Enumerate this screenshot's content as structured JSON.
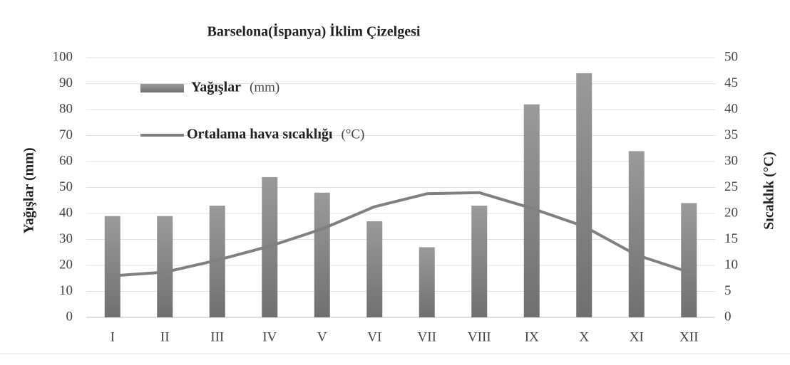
{
  "chart_data": {
    "type": "bar",
    "title": "Barselona(İspanya) İklim Çizelgesi",
    "categories": [
      "I",
      "II",
      "III",
      "IV",
      "V",
      "VI",
      "VII",
      "VIII",
      "IX",
      "X",
      "XI",
      "XII"
    ],
    "series": [
      {
        "name": "Yağışlar",
        "unit": "(mm)",
        "type": "bar",
        "color": "#8c8c8c",
        "values": [
          39,
          39,
          43,
          54,
          48,
          37,
          27,
          43,
          82,
          94,
          64,
          44
        ]
      },
      {
        "name": "Ortalama hava sıcaklığı",
        "unit": "(°C)",
        "type": "line",
        "axis": "y2",
        "color": "#808080",
        "values": [
          8,
          8.7,
          11,
          13.7,
          17,
          21.3,
          23.8,
          24,
          21,
          17.5,
          12,
          8.7
        ]
      }
    ],
    "ylabel": "Yağışlar (mm)",
    "y2label": "Sıcaklık (°C)",
    "ylim": [
      0,
      100
    ],
    "yticks": [
      0,
      10,
      20,
      30,
      40,
      50,
      60,
      70,
      80,
      90,
      100
    ],
    "y2lim": [
      0,
      50
    ],
    "y2ticks": [
      0,
      5,
      10,
      15,
      20,
      25,
      30,
      35,
      40,
      45,
      50
    ],
    "grid": true
  }
}
